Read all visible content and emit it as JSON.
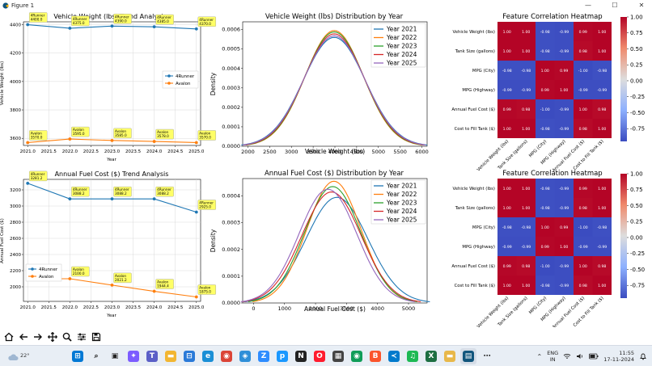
{
  "window": {
    "title": "Figure 1",
    "minimize": "—",
    "maximize": "☐",
    "close": "✕"
  },
  "plots": {
    "weight_trend": {
      "title": "Vehicle Weight (lbs) Trend Analysis",
      "xlabel": "Year",
      "ylabel": "Vehicle Weight (lbs)",
      "xticks": [
        "2021.0",
        "2021.5",
        "2022.0",
        "2022.5",
        "2023.0",
        "2023.5",
        "2024.0",
        "2024.5",
        "2025.0"
      ],
      "yticks": [
        "3600",
        "3800",
        "4000",
        "4200",
        "4400"
      ],
      "legend": [
        "4Runner",
        "Avalon"
      ]
    },
    "fuel_trend": {
      "title": "Annual Fuel Cost ($) Trend Analysis",
      "xlabel": "Year",
      "ylabel": "Annual Fuel Cost ($)",
      "xticks": [
        "2021.0",
        "2021.5",
        "2022.0",
        "2022.5",
        "2023.0",
        "2023.5",
        "2024.0",
        "2024.5",
        "2025.0"
      ],
      "yticks": [
        "2000",
        "2200",
        "2400",
        "2600",
        "2800",
        "3000",
        "3200"
      ],
      "legend": [
        "4Runner",
        "Avalon"
      ]
    },
    "weight_dist": {
      "title": "Vehicle Weight (lbs) Distribution by Year",
      "xlabel": "Vehicle Weight (lbs)",
      "ylabel": "Density",
      "xticks": [
        "2000",
        "2500",
        "3000",
        "3500",
        "4000",
        "4500",
        "5000",
        "5500",
        "6000"
      ],
      "yticks": [
        "0.0000",
        "0.0001",
        "0.0002",
        "0.0003",
        "0.0004",
        "0.0005",
        "0.0006"
      ],
      "legend": [
        "Year 2021",
        "Year 2022",
        "Year 2023",
        "Year 2024",
        "Year 2025"
      ]
    },
    "fuel_dist": {
      "title": "Annual Fuel Cost ($) Distribution by Year",
      "xlabel": "Annual Fuel Cost ($)",
      "ylabel": "Density",
      "xticks": [
        "0",
        "1000",
        "2000",
        "3000",
        "4000",
        "5000"
      ],
      "yticks": [
        "0.0000",
        "0.0001",
        "0.0002",
        "0.0003",
        "0.0004"
      ],
      "legend": [
        "Year 2021",
        "Year 2022",
        "Year 2023",
        "Year 2024",
        "Year 2025"
      ]
    },
    "heatmap_top": {
      "title": "Feature Correlation Heatmap"
    },
    "heatmap_bottom": {
      "title": "Feature Correlation Heatmap"
    }
  },
  "chart_data": [
    {
      "type": "line",
      "title": "Vehicle Weight (lbs) Trend Analysis",
      "xlabel": "Year",
      "ylabel": "Vehicle Weight (lbs)",
      "x": [
        2021,
        2022,
        2023,
        2024,
        2025
      ],
      "xlim": [
        2020.9,
        2025.1
      ],
      "ylim": [
        3550,
        4420
      ],
      "series": [
        {
          "name": "4Runner",
          "values": [
            4400.0,
            4375.0,
            4390.0,
            4385.0,
            4370.0
          ],
          "labels": [
            "4Runner\n4400.0",
            "4Runner\n4375.0",
            "4Runner\n4390.0",
            "4Runner\n4385.0",
            "4Runner\n4370.0"
          ]
        },
        {
          "name": "Avalon",
          "values": [
            3570.0,
            3595.0,
            3585.0,
            3578.0,
            3570.0
          ],
          "labels": [
            "Avalon\n3570.0",
            "Avalon\n3595.0",
            "Avalon\n3585.0",
            "Avalon\n3578.0",
            "Avalon\n3570.0"
          ]
        }
      ]
    },
    {
      "type": "line",
      "title": "Annual Fuel Cost ($) Trend Analysis",
      "xlabel": "Year",
      "ylabel": "Annual Fuel Cost ($)",
      "x": [
        2021,
        2022,
        2023,
        2024,
        2025
      ],
      "xlim": [
        2020.9,
        2025.1
      ],
      "ylim": [
        1820,
        3330
      ],
      "series": [
        {
          "name": "4Runner",
          "values": [
            3281.2,
            3088.2,
            3088.2,
            3088.2,
            2925.0
          ],
          "labels": [
            "4Runner\n3281.2",
            "4Runner\n3088.2",
            "4Runner\n3088.2",
            "4Runner\n3088.2",
            "4Runner\n2925.0"
          ]
        },
        {
          "name": "Avalon",
          "values": [
            2100.0,
            2100.0,
            2021.2,
            1944.4,
            1875.0
          ],
          "labels": [
            "Avalon\n2100.0",
            "Avalon\n2100.0",
            "Avalon\n2021.2",
            "Avalon\n1944.4",
            "Avalon\n1875.0"
          ]
        }
      ]
    },
    {
      "type": "line",
      "title": "Vehicle Weight (lbs) Distribution by Year",
      "xlabel": "Vehicle Weight (lbs)",
      "ylabel": "Density",
      "xlim": [
        1880,
        6120
      ],
      "ylim": [
        0,
        0.00064
      ],
      "series": [
        {
          "name": "Year 2021",
          "color": "#1f77b4",
          "mean": 3985,
          "sd": 712,
          "peak": 0.00056
        },
        {
          "name": "Year 2022",
          "color": "#ff7f0e",
          "mean": 3985,
          "sd": 670,
          "peak": 0.000595
        },
        {
          "name": "Year 2023",
          "color": "#2ca02c",
          "mean": 3985,
          "sd": 678,
          "peak": 0.000588
        },
        {
          "name": "Year 2024",
          "color": "#d62728",
          "mean": 3985,
          "sd": 690,
          "peak": 0.000578
        },
        {
          "name": "Year 2025",
          "color": "#9467bd",
          "mean": 3985,
          "sd": 702,
          "peak": 0.000568
        }
      ]
    },
    {
      "type": "line",
      "title": "Annual Fuel Cost ($) Distribution by Year",
      "xlabel": "Annual Fuel Cost ($)",
      "ylabel": "Density",
      "xlim": [
        -350,
        5600
      ],
      "ylim": [
        0,
        0.000465
      ],
      "series": [
        {
          "name": "Year 2021",
          "color": "#1f77b4",
          "mean": 2690,
          "sd": 1000,
          "peak": 0.000395
        },
        {
          "name": "Year 2022",
          "color": "#ff7f0e",
          "mean": 2594,
          "sd": 875,
          "peak": 0.000455
        },
        {
          "name": "Year 2023",
          "color": "#2ca02c",
          "mean": 2554,
          "sd": 908,
          "peak": 0.000435
        },
        {
          "name": "Year 2024",
          "color": "#d62728",
          "mean": 2516,
          "sd": 960,
          "peak": 0.000415
        },
        {
          "name": "Year 2025",
          "color": "#9467bd",
          "mean": 2400,
          "sd": 935,
          "peak": 0.000425
        }
      ]
    },
    {
      "type": "heatmap",
      "title": "Feature Correlation Heatmap",
      "labels": [
        "Vehicle Weight (lbs)",
        "Tank Size (gallons)",
        "MPG (City)",
        "MPG (Highway)",
        "Annual Fuel Cost ($)",
        "Cost to Fill Tank ($)"
      ],
      "values": [
        [
          1.0,
          1.0,
          -0.98,
          -0.99,
          0.99,
          1.0
        ],
        [
          1.0,
          1.0,
          -0.98,
          -0.99,
          0.98,
          1.0
        ],
        [
          -0.98,
          -0.98,
          1.0,
          0.99,
          -1.0,
          -0.98
        ],
        [
          -0.99,
          -0.99,
          0.99,
          1.0,
          -0.99,
          -0.99
        ],
        [
          0.99,
          0.98,
          -1.0,
          -0.99,
          1.0,
          0.98
        ],
        [
          1.0,
          1.0,
          -0.98,
          -0.99,
          0.98,
          1.0
        ]
      ],
      "colorbar_ticks": [
        "1.00",
        "0.75",
        "0.50",
        "0.25",
        "0.00",
        "-0.25",
        "-0.50",
        "-0.75"
      ]
    },
    {
      "type": "heatmap",
      "title": "Feature Correlation Heatmap",
      "labels": [
        "Vehicle Weight (lbs)",
        "Tank Size (gallons)",
        "MPG (City)",
        "MPG (Highway)",
        "Annual Fuel Cost ($)",
        "Cost to Fill Tank ($)"
      ],
      "values": [
        [
          1.0,
          1.0,
          -0.98,
          -0.99,
          0.99,
          1.0
        ],
        [
          1.0,
          1.0,
          -0.98,
          -0.99,
          0.98,
          1.0
        ],
        [
          -0.98,
          -0.98,
          1.0,
          0.99,
          -1.0,
          -0.98
        ],
        [
          -0.99,
          -0.99,
          0.99,
          1.0,
          -0.99,
          -0.99
        ],
        [
          0.99,
          0.98,
          -1.0,
          -0.99,
          1.0,
          0.98
        ],
        [
          1.0,
          1.0,
          -0.98,
          -0.99,
          0.98,
          1.0
        ]
      ],
      "colorbar_ticks": [
        "1.00",
        "0.75",
        "0.50",
        "0.25",
        "0.00",
        "-0.25",
        "-0.50",
        "-0.75"
      ]
    }
  ],
  "toolbar": {
    "icons": [
      "home-icon",
      "back-arrow-icon",
      "forward-arrow-icon",
      "pan-icon",
      "zoom-icon",
      "configure-icon",
      "save-icon"
    ]
  },
  "taskbar": {
    "weather_temp": "22°",
    "apps": [
      "windows-start-icon",
      "search-icon",
      "task-view-icon",
      "copilot-icon",
      "teams-icon",
      "file-explorer-icon",
      "store-icon",
      "edge-icon",
      "chrome-icon",
      "photos-icon",
      "zoom-app-icon",
      "prime-icon",
      "notion-icon",
      "opera-icon",
      "calculator-icon",
      "chrome-profile-icon",
      "brave-icon",
      "vscode-icon",
      "spotify-icon",
      "excel-icon",
      "folder-icon",
      "python-figure-icon",
      "more-apps-icon"
    ],
    "lang_top": "ENG",
    "lang_bottom": "IN",
    "time": "11:55",
    "date": "17-11-2024"
  }
}
